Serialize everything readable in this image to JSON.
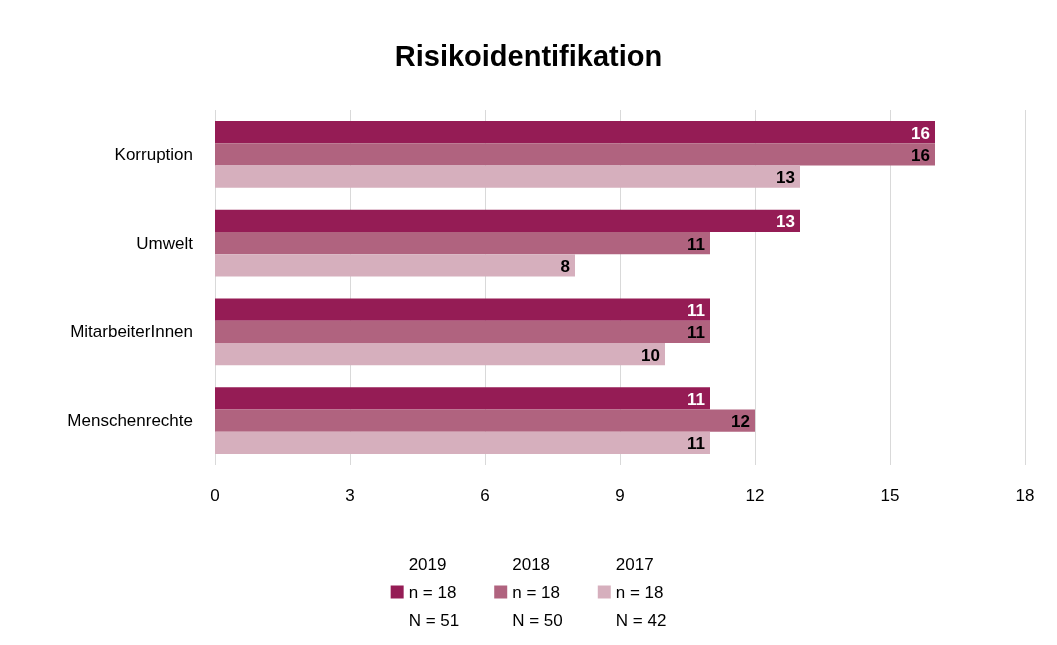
{
  "chart_data": {
    "type": "bar",
    "orientation": "horizontal",
    "title": "Risikoidentifikation",
    "categories": [
      "Korruption",
      "Umwelt",
      "MitarbeiterInnen",
      "Menschenrechte"
    ],
    "series": [
      {
        "name": "2019\nn = 18\nN = 51",
        "color": "#951c55",
        "values": [
          16,
          13,
          11,
          11
        ]
      },
      {
        "name": "2018\nn = 18\nN = 50",
        "color": "#b0637f",
        "values": [
          16,
          11,
          11,
          12
        ]
      },
      {
        "name": "2017\nn = 18\nN = 42",
        "color": "#d6afbd",
        "values": [
          13,
          8,
          10,
          11
        ]
      }
    ],
    "xlim": [
      0,
      18
    ],
    "xticks": [
      0,
      3,
      6,
      9,
      12,
      15,
      18
    ],
    "grid": "x",
    "legend": "bottom",
    "data_labels": true
  }
}
